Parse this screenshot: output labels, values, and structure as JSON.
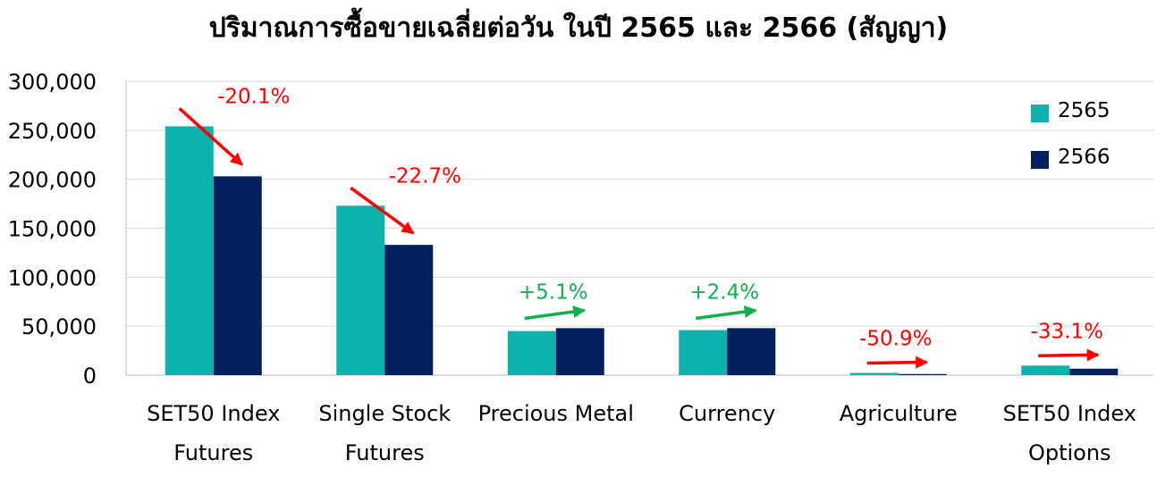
{
  "chart_data": {
    "type": "bar",
    "title": "ปริมาณการซื้อขายเฉลี่ยต่อวัน ในปี 2565 และ 2566 (สัญญา)",
    "xlabel": "",
    "ylabel": "",
    "ylim": [
      0,
      300000
    ],
    "yticks": [
      "0",
      "50,000",
      "100,000",
      "150,000",
      "200,000",
      "250,000",
      "300,000"
    ],
    "categories": [
      [
        "SET50 Index",
        "Futures"
      ],
      [
        "Single Stock",
        "Futures"
      ],
      [
        "Precious Metal"
      ],
      [
        "Currency"
      ],
      [
        "Agriculture"
      ],
      [
        "SET50 Index",
        "Options"
      ]
    ],
    "series": [
      {
        "name": "2565",
        "color": "#0db2ac",
        "values": [
          254000,
          173000,
          45000,
          46000,
          2300,
          9800
        ]
      },
      {
        "name": "2566",
        "color": "#03205e",
        "values": [
          203000,
          133000,
          48000,
          48000,
          1150,
          6600
        ]
      }
    ],
    "annotations": [
      {
        "text": "-20.1%",
        "color": "#ff0000",
        "direction": "down"
      },
      {
        "text": "-22.7%",
        "color": "#ff0000",
        "direction": "down"
      },
      {
        "text": "+5.1%",
        "color": "#12b04c",
        "direction": "up"
      },
      {
        "text": "+2.4%",
        "color": "#12b04c",
        "direction": "up"
      },
      {
        "text": "-50.9%",
        "color": "#ff0000",
        "direction": "down"
      },
      {
        "text": "-33.1%",
        "color": "#ff0000",
        "direction": "down"
      }
    ],
    "grid": true,
    "legend_position": "top-right"
  }
}
